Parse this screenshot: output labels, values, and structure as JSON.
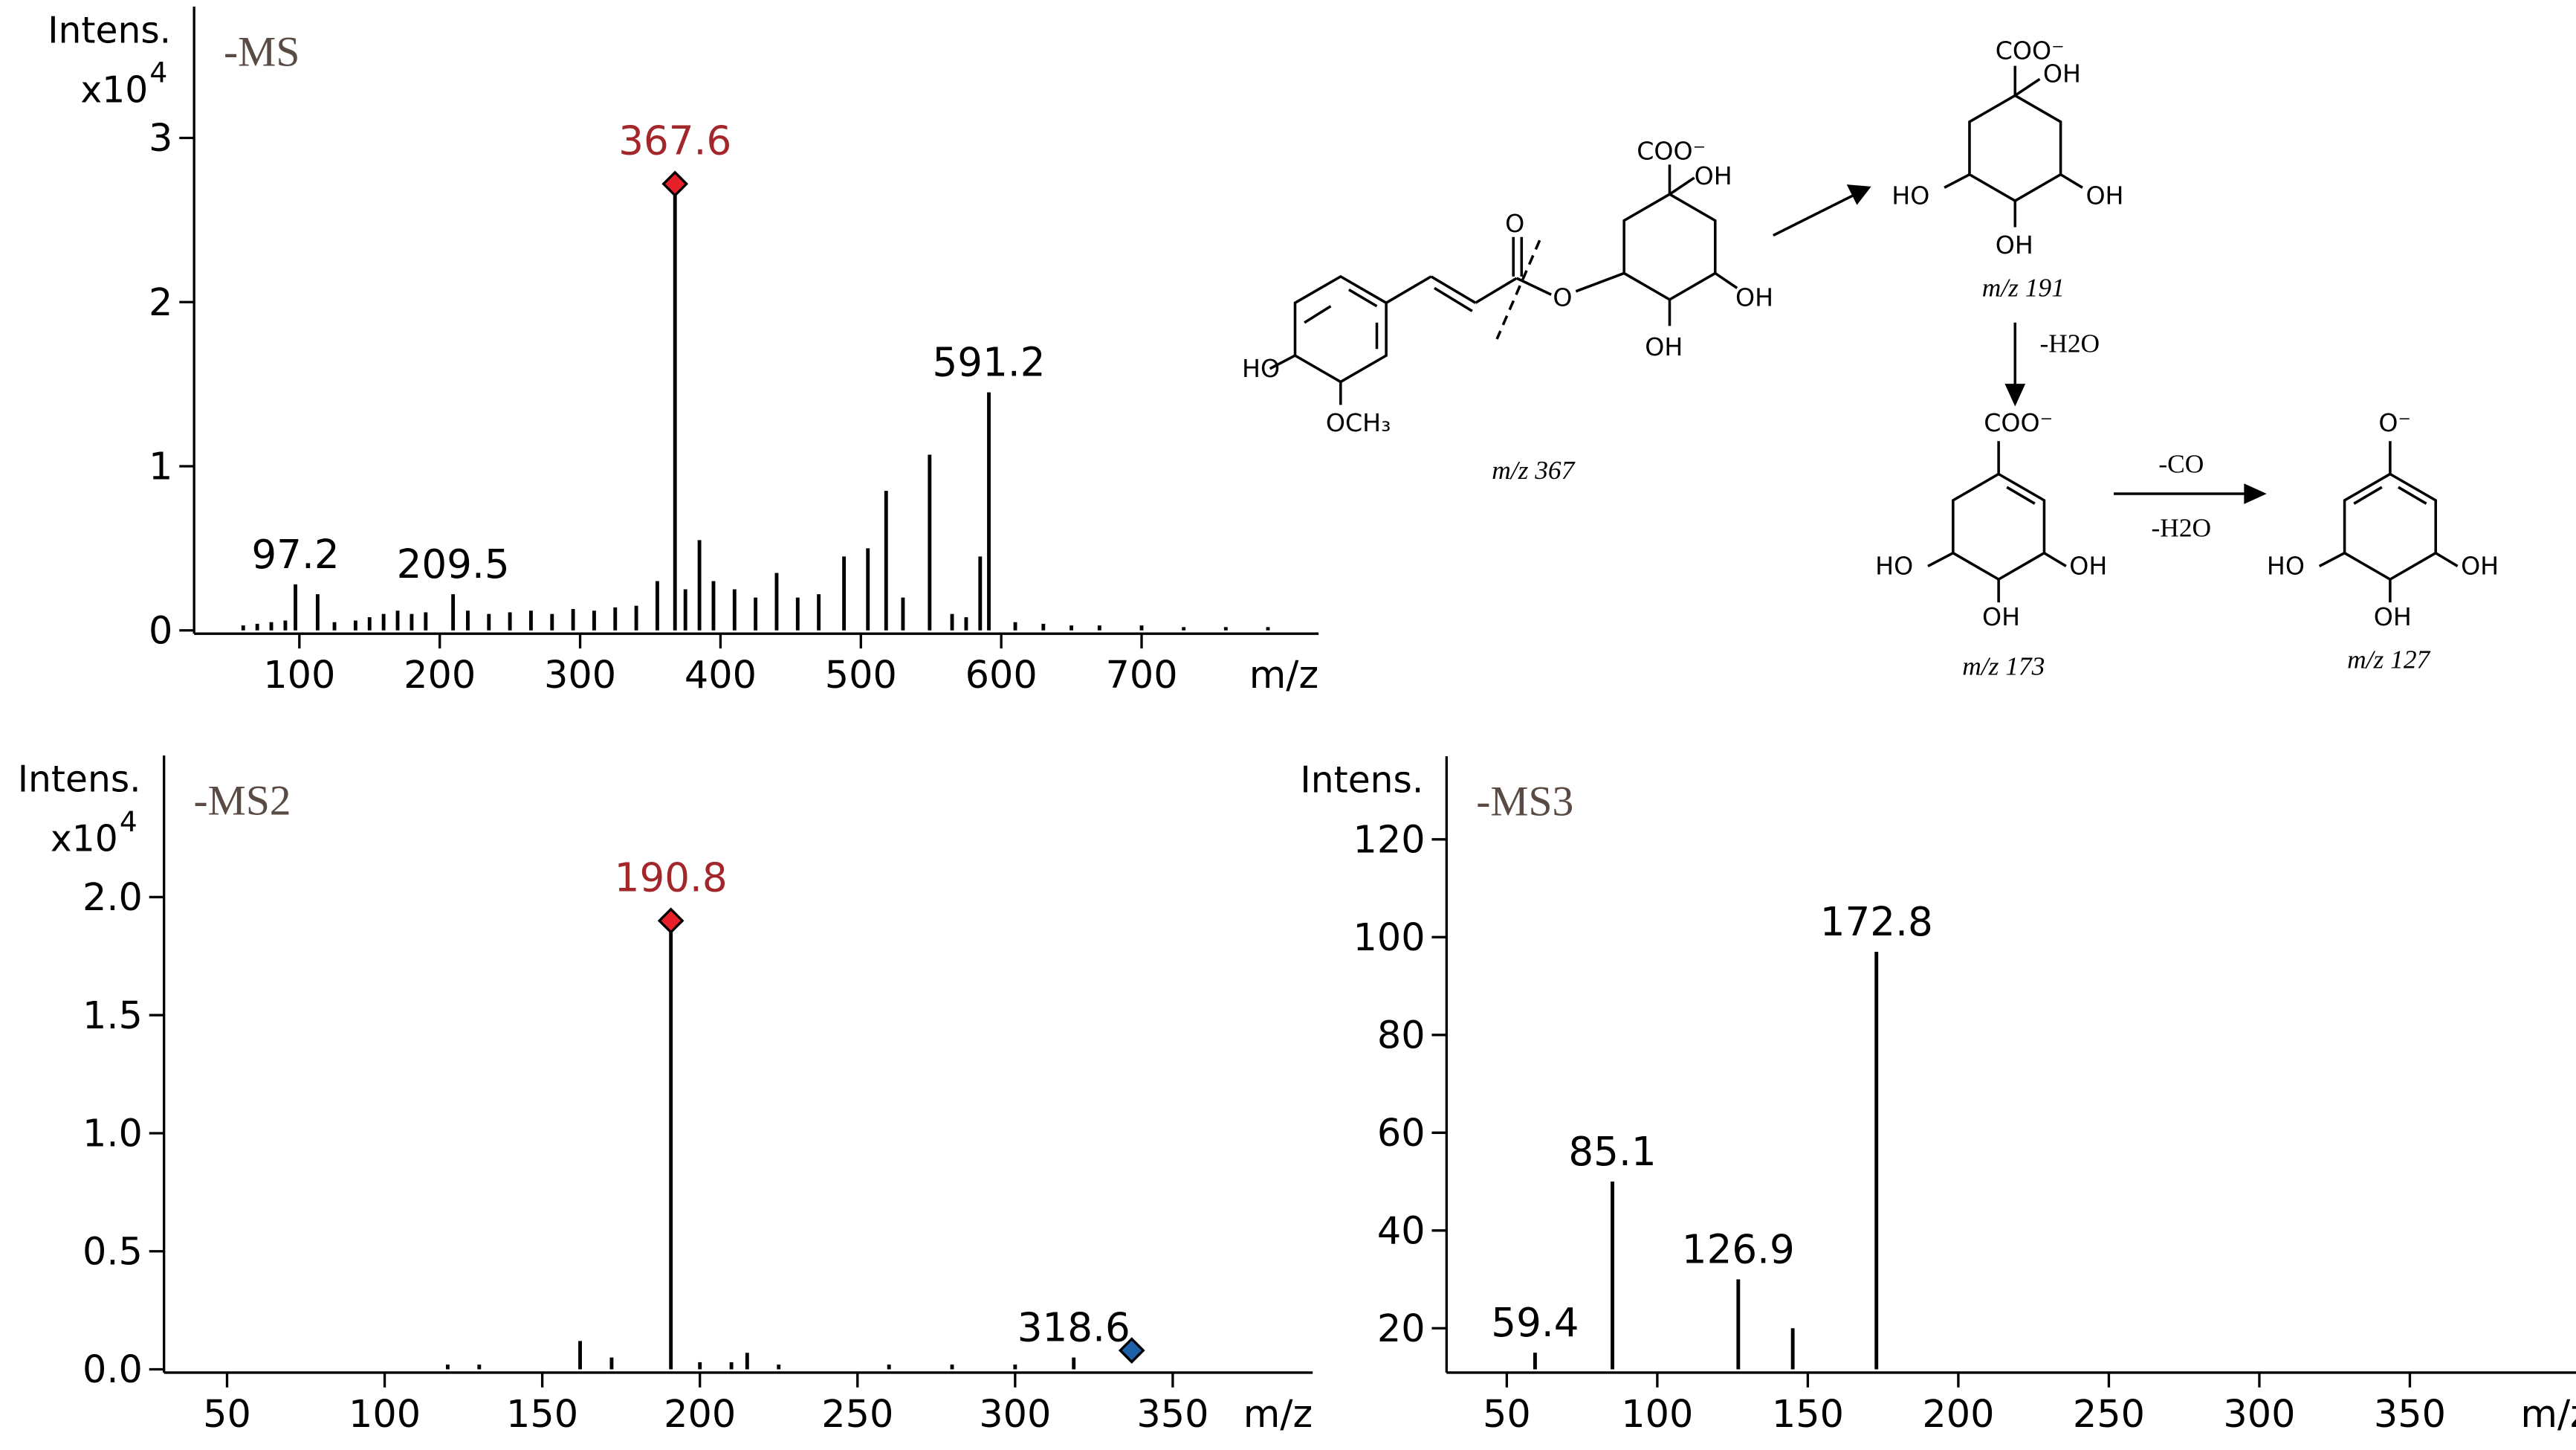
{
  "chart_data": [
    {
      "type": "spectrum",
      "title": "-MS",
      "y_label": "Intens.",
      "y_unit": "x10",
      "y_unit_exp": "4",
      "x_label": "m/z",
      "color": "#000000",
      "x": [
        60,
        70,
        80,
        90,
        97.2,
        113,
        125,
        140,
        150,
        160,
        170,
        180,
        190,
        209.5,
        220,
        235,
        250,
        265,
        280,
        295,
        310,
        325,
        340,
        355,
        367.6,
        375,
        385,
        395,
        410,
        425,
        440,
        455,
        470,
        488,
        505,
        518,
        530,
        549,
        565,
        575,
        585,
        591.2,
        610,
        630,
        650,
        670,
        700,
        730,
        760,
        790
      ],
      "values": [
        0.03,
        0.04,
        0.05,
        0.06,
        0.28,
        0.22,
        0.05,
        0.06,
        0.08,
        0.1,
        0.12,
        0.1,
        0.11,
        0.22,
        0.12,
        0.1,
        0.11,
        0.12,
        0.1,
        0.13,
        0.12,
        0.14,
        0.15,
        0.3,
        2.72,
        0.25,
        0.55,
        0.3,
        0.25,
        0.2,
        0.35,
        0.2,
        0.22,
        0.45,
        0.5,
        0.85,
        0.2,
        1.07,
        0.1,
        0.08,
        0.45,
        1.45,
        0.05,
        0.04,
        0.03,
        0.03,
        0.03,
        0.02,
        0.02,
        0.02
      ],
      "xlim": [
        25,
        805
      ],
      "ylim": [
        0,
        3.8
      ],
      "xticks": [
        100,
        200,
        300,
        400,
        500,
        600,
        700
      ],
      "yticks": [
        0,
        1,
        2,
        3
      ],
      "annotations": [
        {
          "x": 97.2
        },
        {
          "x": 209.5
        },
        {
          "x": 367.6,
          "color": "#a3262a"
        },
        {
          "x": 591.2
        }
      ],
      "markers": [
        {
          "x": 367.6,
          "y": 2.72,
          "color": "#e8202a"
        }
      ]
    },
    {
      "type": "spectrum",
      "title": "-MS2",
      "y_label": "Intens.",
      "y_unit": "x10",
      "y_unit_exp": "4",
      "x_label": "m/z",
      "color": "#000000",
      "x": [
        120,
        130,
        162,
        172,
        190.8,
        200,
        210,
        215,
        225,
        260,
        280,
        300,
        318.6
      ],
      "values": [
        0.02,
        0.02,
        0.12,
        0.05,
        1.9,
        0.03,
        0.03,
        0.07,
        0.02,
        0.02,
        0.02,
        0.02,
        0.05
      ],
      "xlim": [
        30,
        385
      ],
      "ylim": [
        0,
        2.6
      ],
      "xticks": [
        50,
        100,
        150,
        200,
        250,
        300,
        350
      ],
      "yticks": [
        {
          "value": 0,
          "label": "0.0"
        },
        0.5,
        {
          "value": 1,
          "label": "1.0"
        },
        1.5,
        {
          "value": 2,
          "label": "2.0"
        }
      ],
      "annotations": [
        {
          "x": 190.8,
          "color": "#a3262a"
        },
        {
          "x": 318.6
        }
      ],
      "markers": [
        {
          "x": 190.8,
          "y": 1.9,
          "color": "#e8202a"
        },
        {
          "x": 337,
          "y": 0.08,
          "color": "#1f5fa8"
        }
      ]
    },
    {
      "type": "spectrum",
      "title": "-MS3",
      "y_label": "Intens.",
      "x_label": "m/z",
      "color": "#000000",
      "x": [
        59.4,
        85.1,
        126.9,
        145,
        172.8
      ],
      "values": [
        15,
        50,
        30,
        20,
        97
      ],
      "xlim": [
        30,
        400
      ],
      "ylim": [
        11.6,
        137
      ],
      "xticks": [
        50,
        100,
        150,
        200,
        250,
        300,
        350
      ],
      "yticks": [
        20,
        40,
        60,
        80,
        100,
        120
      ],
      "annotations": [
        {
          "x": 59.4
        },
        {
          "x": 85.1
        },
        {
          "x": 126.9
        },
        {
          "x": 172.8
        }
      ],
      "markers": []
    }
  ],
  "diagram": {
    "labels": [
      "HO",
      "OCH₃",
      "O",
      "O",
      "COO⁻",
      "OH",
      "OH",
      "OH",
      "m/z 367",
      "COO⁻",
      "OH",
      "HO",
      "OH",
      "OH",
      "m/z 191",
      "-H2O",
      "COO⁻",
      "HO",
      "OH",
      "OH",
      "m/z 173",
      "-CO",
      "-H2O",
      "O⁻",
      "HO",
      "OH",
      "OH",
      "m/z 127"
    ]
  }
}
